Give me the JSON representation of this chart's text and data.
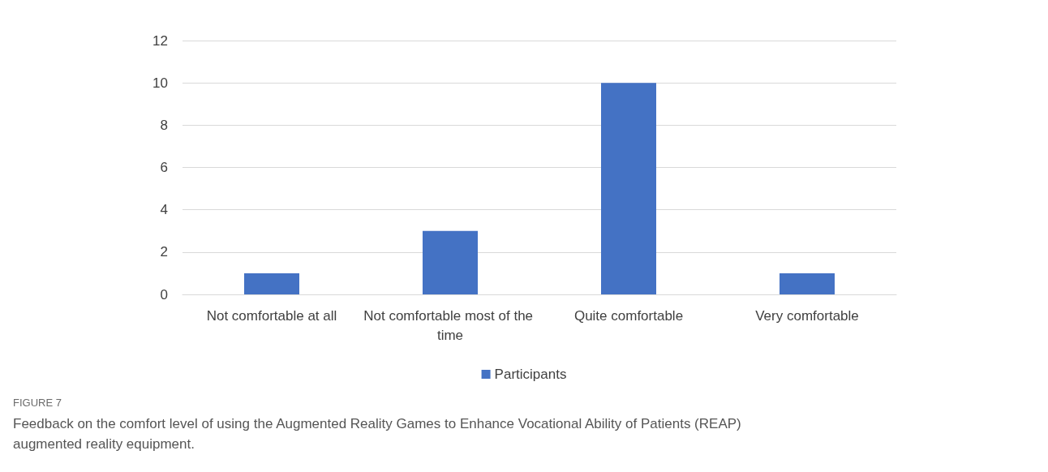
{
  "chart_data": {
    "type": "bar",
    "categories": [
      "Not comfortable at all",
      "Not comfortable most of the time",
      "Quite comfortable",
      "Very comfortable"
    ],
    "series": [
      {
        "name": "Participants",
        "color": "#4472c4",
        "values": [
          1,
          3,
          10,
          1
        ]
      }
    ],
    "ylim": [
      0,
      12
    ],
    "yticks": [
      0,
      2,
      4,
      6,
      8,
      10,
      12
    ],
    "grid": "y",
    "legend": "bottom",
    "annotations": [
      "FIGURE 7",
      "Feedback on the comfort level of using the Augmented Reality Games to Enhance Vocational Ability of Patients (REAP) augmented reality equipment."
    ]
  }
}
